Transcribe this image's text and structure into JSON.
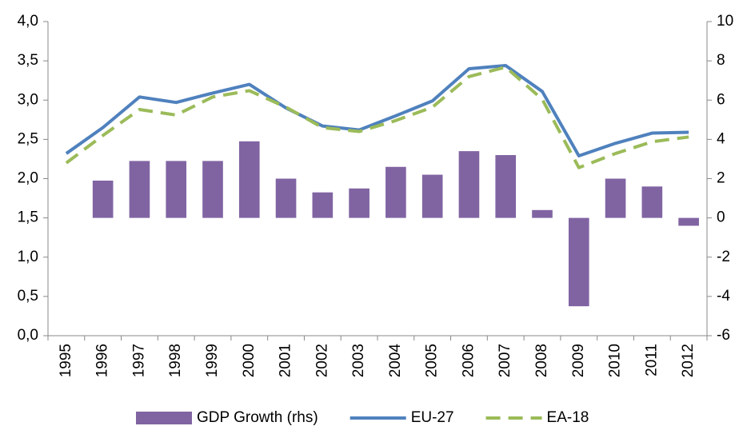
{
  "chart_data": {
    "type": "bar-line",
    "categories": [
      "1995",
      "1996",
      "1997",
      "1998",
      "1999",
      "2000",
      "2001",
      "2002",
      "2003",
      "2004",
      "2005",
      "2006",
      "2007",
      "2008",
      "2009",
      "2010",
      "2011",
      "2012"
    ],
    "series": [
      {
        "name": "GDP Growth (rhs)",
        "type": "bar",
        "axis": "y2",
        "color": "#8064a2",
        "values": [
          null,
          1.9,
          2.9,
          2.9,
          2.9,
          3.9,
          2.0,
          1.3,
          1.5,
          2.6,
          2.2,
          3.4,
          3.2,
          0.4,
          -4.5,
          2.0,
          1.6,
          -0.4
        ]
      },
      {
        "name": "EU-27",
        "type": "line",
        "color": "#4f81bd",
        "values": [
          2.32,
          2.65,
          3.04,
          2.97,
          3.09,
          3.2,
          2.9,
          2.67,
          2.62,
          2.8,
          2.99,
          3.4,
          3.44,
          3.11,
          2.29,
          2.45,
          2.58,
          2.59
        ]
      },
      {
        "name": "EA-18",
        "type": "line",
        "dashed": true,
        "color": "#9bbb59",
        "values": [
          2.2,
          2.55,
          2.88,
          2.81,
          3.04,
          3.12,
          2.91,
          2.65,
          2.6,
          2.74,
          2.91,
          3.3,
          3.42,
          3.01,
          2.14,
          2.32,
          2.47,
          2.53
        ]
      }
    ],
    "ylim": [
      0,
      4
    ],
    "yticks": [
      {
        "value": 0,
        "label": "0,0"
      },
      {
        "value": 0.5,
        "label": "0,5"
      },
      {
        "value": 1,
        "label": "1,0"
      },
      {
        "value": 1.5,
        "label": "1,5"
      },
      {
        "value": 2,
        "label": "2,0"
      },
      {
        "value": 2.5,
        "label": "2,5"
      },
      {
        "value": 3,
        "label": "3,0"
      },
      {
        "value": 3.5,
        "label": "3,5"
      },
      {
        "value": 4,
        "label": "4,0"
      }
    ],
    "y2lim": [
      -6,
      10
    ],
    "y2ticks": [
      -6,
      -4,
      -2,
      0,
      2,
      4,
      6,
      8,
      10
    ],
    "grid": false,
    "legend": "bottom"
  }
}
